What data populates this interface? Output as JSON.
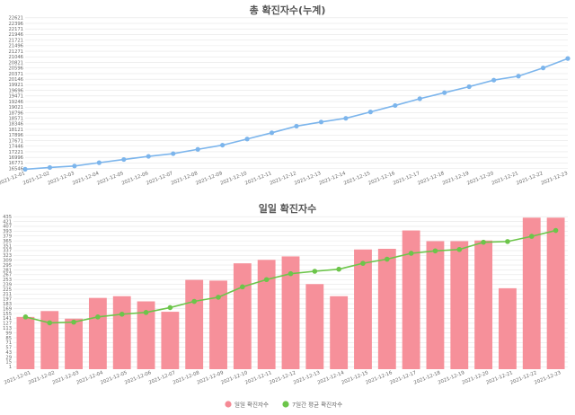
{
  "chart_data": [
    {
      "type": "line",
      "title": "총 확진자수(누계)",
      "categories": [
        "2021-12-01",
        "2021-12-02",
        "2021-12-03",
        "2021-12-04",
        "2021-12-05",
        "2021-12-06",
        "2021-12-07",
        "2021-12-08",
        "2021-12-09",
        "2021-12-10",
        "2021-12-11",
        "2021-12-12",
        "2021-12-13",
        "2021-12-14",
        "2021-12-15",
        "2021-12-16",
        "2021-12-17",
        "2021-12-18",
        "2021-12-19",
        "2021-12-20",
        "2021-12-21",
        "2021-12-22",
        "2021-12-23"
      ],
      "series": [
        {
          "values": [
            16518,
            16589,
            16648,
            16781,
            16910,
            17036,
            17146,
            17320,
            17488,
            17735,
            17987,
            18254,
            18422,
            18571,
            18826,
            19086,
            19360,
            19603,
            19844,
            20110,
            20270,
            20600,
            20980
          ]
        }
      ],
      "yticks": [
        "16546",
        "16771",
        "16996",
        "17221",
        "17446",
        "17671",
        "17896",
        "18121",
        "18346",
        "18571",
        "18796",
        "19021",
        "19246",
        "19471",
        "19696",
        "19921",
        "20146",
        "20371",
        "20596",
        "20821",
        "21046",
        "21271",
        "21496",
        "21721",
        "21946",
        "22171",
        "22396",
        "22621"
      ],
      "ylim": [
        16496,
        22650
      ],
      "color": "#7cb5ec",
      "grid": true
    },
    {
      "type": "bar",
      "title": "일일 확진자수",
      "categories": [
        "2021-12-01",
        "2021-12-02",
        "2021-12-03",
        "2021-12-04",
        "2021-12-05",
        "2021-12-06",
        "2021-12-07",
        "2021-12-08",
        "2021-12-09",
        "2021-12-10",
        "2021-12-11",
        "2021-12-12",
        "2021-12-13",
        "2021-12-14",
        "2021-12-15",
        "2021-12-16",
        "2021-12-17",
        "2021-12-18",
        "2021-12-19",
        "2021-12-20",
        "2021-12-21",
        "2021-12-22",
        "2021-12-23"
      ],
      "series": [
        {
          "name": "일일 확진자수",
          "type": "bar",
          "color": "#f58a95",
          "values": [
            145,
            162,
            140,
            200,
            205,
            190,
            160,
            252,
            250,
            300,
            310,
            320,
            240,
            205,
            340,
            342,
            395,
            364,
            364,
            366,
            228,
            432,
            432
          ]
        },
        {
          "name": "7일간 평균 확진자수",
          "type": "line",
          "color": "#6cc54a",
          "values": [
            145,
            128,
            130,
            145,
            153,
            158,
            172,
            190,
            202,
            232,
            253,
            270,
            277,
            283,
            300,
            312,
            329,
            336,
            340,
            361,
            363,
            378,
            395
          ]
        }
      ],
      "yticks": [
        "1",
        "15",
        "29",
        "43",
        "57",
        "71",
        "85",
        "99",
        "113",
        "127",
        "141",
        "155",
        "169",
        "183",
        "197",
        "211",
        "225",
        "239",
        "253",
        "267",
        "281",
        "295",
        "309",
        "323",
        "337",
        "351",
        "365",
        "379",
        "393",
        "407",
        "421",
        "435"
      ],
      "ylim": [
        -6,
        438
      ],
      "grid": true,
      "legend": "bottom-center"
    }
  ]
}
